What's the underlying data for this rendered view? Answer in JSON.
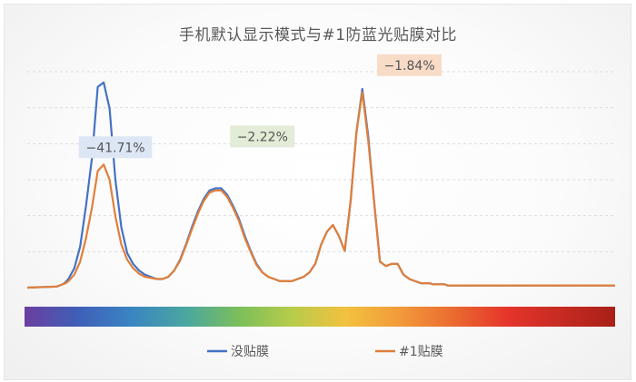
{
  "chart_data": {
    "type": "line",
    "title": "手机默认显示模式与#1防蓝光贴膜对比",
    "xlabel": "",
    "ylabel": "",
    "grid": true,
    "legend_position": "bottom",
    "x_range": [
      0,
      100
    ],
    "ylim": [
      0,
      100
    ],
    "x": [
      0,
      5,
      5.5,
      6,
      6.5,
      7,
      8,
      9,
      10,
      11,
      12,
      13,
      14,
      15,
      16,
      17,
      18,
      19,
      20,
      21,
      22,
      23,
      24,
      25,
      26,
      27,
      28,
      29,
      30,
      31,
      32,
      33,
      34,
      35,
      36,
      37,
      38,
      39,
      40,
      41,
      42,
      43,
      44,
      45,
      46,
      47,
      48,
      49,
      50,
      51,
      52,
      53,
      54,
      55,
      56,
      57,
      58,
      59,
      60,
      61,
      62,
      63,
      64,
      65,
      66,
      67,
      67.5,
      68,
      68.5,
      69,
      69.5,
      70,
      70.5,
      71,
      71.5,
      72,
      72.5,
      73,
      74,
      75,
      76,
      77,
      78,
      79,
      80,
      81,
      82,
      83,
      84,
      85,
      86,
      87,
      88,
      89,
      90,
      91,
      92,
      93,
      94,
      95,
      96,
      97,
      98,
      99,
      100
    ],
    "series": [
      {
        "name": "没贴膜",
        "color": "#4472c4",
        "values": [
          0,
          0.5,
          1,
          1.5,
          2.5,
          4,
          9,
          19,
          38,
          60,
          93,
          95,
          83,
          50,
          28,
          16,
          11,
          8,
          6,
          5,
          4,
          4,
          5,
          8,
          13,
          20,
          28,
          35,
          41,
          45,
          46,
          46,
          43,
          38,
          32,
          24,
          17,
          11,
          7,
          5,
          4,
          3,
          3,
          3,
          4,
          5,
          7,
          11,
          20,
          26,
          29,
          24,
          17,
          40,
          72,
          92,
          70,
          40,
          12,
          10,
          11,
          11,
          6,
          4,
          3,
          2,
          2,
          2,
          2,
          1.5,
          1.5,
          1.5,
          1.5,
          1.5,
          1,
          1,
          1,
          1,
          1,
          1,
          1,
          1,
          1,
          1,
          1,
          1,
          1,
          1,
          1,
          1,
          1,
          1,
          1,
          1,
          1,
          1,
          1,
          1,
          1,
          1,
          1,
          1,
          1,
          1,
          1
        ],
        "label": "−41.71%",
        "label_color": "#dde6f4"
      },
      {
        "name": "#1贴膜",
        "color": "#e07f3a",
        "values": [
          0,
          0.5,
          1,
          1.5,
          2,
          3,
          6,
          12,
          23,
          37,
          54,
          57,
          50,
          33,
          20,
          13,
          9,
          6.5,
          5,
          4.5,
          4,
          4,
          5,
          8,
          12.5,
          19.5,
          27,
          34,
          40,
          44,
          45,
          45,
          42,
          37,
          31,
          23,
          16.5,
          10.5,
          7,
          5,
          4,
          3,
          3,
          3,
          4,
          5,
          7,
          11,
          20,
          26,
          29,
          24,
          17,
          40,
          72,
          90.5,
          68,
          40,
          12,
          10,
          11,
          11,
          6,
          4,
          3,
          2,
          2,
          2,
          2,
          1.5,
          1.5,
          1.5,
          1.5,
          1.5,
          1,
          1,
          1,
          1,
          1,
          1,
          1,
          1,
          1,
          1,
          1,
          1,
          1,
          1,
          1,
          1,
          1,
          1,
          1,
          1,
          1,
          1,
          1,
          1,
          1,
          1,
          1,
          1,
          1,
          1,
          1
        ],
        "label": "−1.84%",
        "label_color": "#f8dcc8"
      }
    ],
    "annotations": [
      {
        "text": "−41.71%",
        "x": 15,
        "y": 65,
        "bg": "#dde6f4"
      },
      {
        "text": "−2.22%",
        "x": 40,
        "y": 70,
        "bg": "#e3ecd7"
      },
      {
        "text": "−1.84%",
        "x": 65,
        "y": 103,
        "bg": "#f8dcc8"
      }
    ],
    "spectrum_colors": [
      "#6b3fa0",
      "#3f5fb8",
      "#3a85c2",
      "#4aa6a0",
      "#7cbf5a",
      "#b8cc4a",
      "#f3c13f",
      "#f29a3a",
      "#ea6a30",
      "#e5342b",
      "#c62b22",
      "#a82018"
    ]
  }
}
